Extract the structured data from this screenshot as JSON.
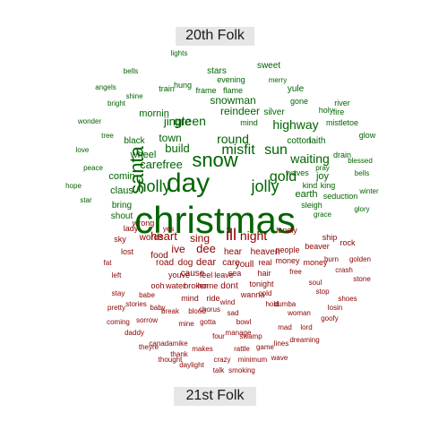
{
  "labels": {
    "top": "20th Folk",
    "bottom": "21st Folk"
  },
  "colors": {
    "top_group": "#006400",
    "bottom_group": "#8b0000"
  },
  "words_top": [
    "christmas",
    "day",
    "santa",
    "snow",
    "holly",
    "jolly",
    "misfit",
    "sun",
    "round",
    "gold",
    "waiting",
    "carefree",
    "green",
    "build",
    "reindeer",
    "highway",
    "snowman",
    "wheel",
    "earth",
    "joy",
    "jingle",
    "town",
    "claus",
    "comin",
    "bring",
    "shout",
    "mornin",
    "black",
    "stars",
    "sweet",
    "yule",
    "silver",
    "river",
    "faith",
    "waves",
    "cotton",
    "drain",
    "mistletoe",
    "glow",
    "gone",
    "kind",
    "king",
    "seduction",
    "holy",
    "fire",
    "sleigh",
    "bells",
    "winter",
    "grace",
    "pray",
    "glory",
    "blessed",
    "evening",
    "train",
    "hung",
    "flame",
    "frame",
    "mind",
    "merry",
    "tree",
    "bright",
    "shine",
    "wonder",
    "love",
    "peace",
    "hope",
    "star",
    "angels",
    "bells",
    "lights"
  ],
  "words_bottom": [
    "ill",
    "night",
    "heart",
    "dee",
    "sing",
    "ive",
    "words",
    "food",
    "dog",
    "dear",
    "cause",
    "road",
    "care",
    "feel",
    "hear",
    "youll",
    "leave",
    "money",
    "heaven",
    "people",
    "sea",
    "hair",
    "home",
    "broken",
    "youve",
    "water",
    "dont",
    "tonight",
    "wanna",
    "money",
    "ship",
    "beaver",
    "rock",
    "sky",
    "lost",
    "lady",
    "fat",
    "left",
    "wrong",
    "yes",
    "ooh",
    "mind",
    "ride",
    "real",
    "free",
    "hold",
    "woman",
    "stop",
    "lonely",
    "soul",
    "crash",
    "burn",
    "stone",
    "stay",
    "shoes",
    "golden",
    "stories",
    "blood",
    "break",
    "sorrow",
    "sad",
    "bowl",
    "gotta",
    "cold",
    "mad",
    "lord",
    "goofy",
    "losin",
    "chorus",
    "mine",
    "wind",
    "swamp",
    "dumba",
    "manage",
    "four",
    "lines",
    "game",
    "canadamike",
    "dreaming",
    "pretty",
    "babe",
    "baby",
    "daddy",
    "coming",
    "theyre",
    "thank",
    "makes",
    "rattle",
    "crazy",
    "daylight",
    "minimum",
    "talk",
    "smoking",
    "thought",
    "wave",
    "walk",
    "fall",
    "shadows"
  ]
}
